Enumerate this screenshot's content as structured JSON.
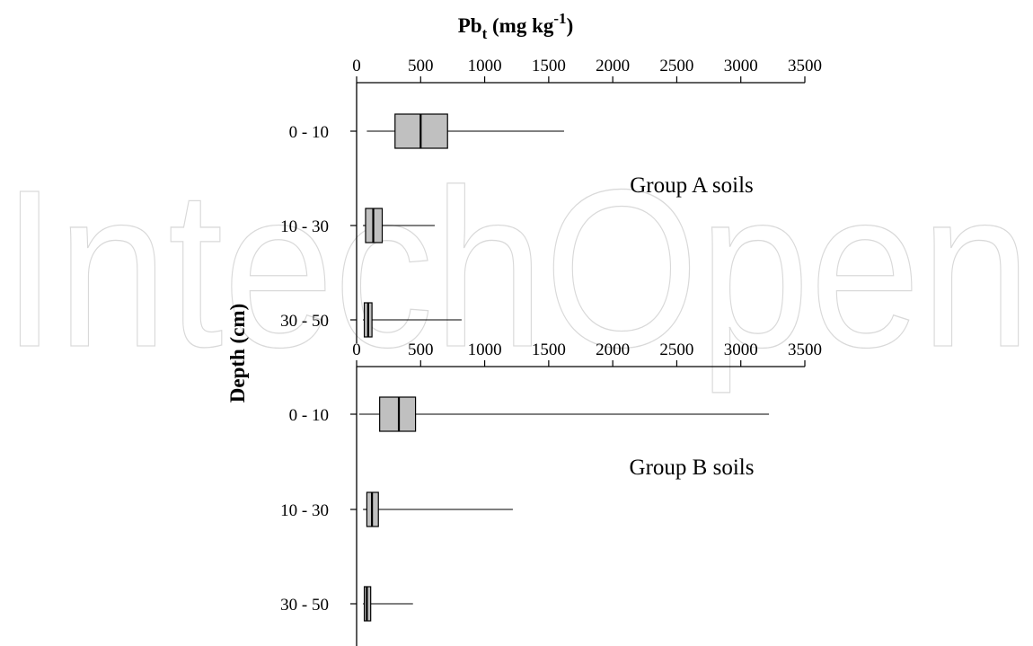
{
  "watermark": "IntechOpen",
  "chart_data": {
    "type": "box",
    "x_title": {
      "main": "Pb",
      "sub": "t",
      "mid": " (mg kg",
      "sup": "-1",
      "end": ")"
    },
    "ylabel": "Depth (cm)",
    "xlim": [
      0,
      3500
    ],
    "x_ticks": [
      0,
      500,
      1000,
      1500,
      2000,
      2500,
      3000,
      3500
    ],
    "x_tick_labels": [
      "0",
      "500",
      "1000",
      "1500",
      "2000",
      "2500",
      "3000",
      "3500"
    ],
    "categories": [
      "0 - 10",
      "10 - 30",
      "30 - 50"
    ],
    "box_fill": "#c0c0c0",
    "panels": [
      {
        "title": "Group A soils",
        "boxes": [
          {
            "depth": "0 - 10",
            "min": 80,
            "q1": 300,
            "median": 500,
            "q3": 710,
            "max": 1620
          },
          {
            "depth": "10 - 30",
            "min": 50,
            "q1": 70,
            "median": 130,
            "q3": 200,
            "max": 610
          },
          {
            "depth": "30 - 50",
            "min": 50,
            "q1": 60,
            "median": 90,
            "q3": 120,
            "max": 820
          }
        ]
      },
      {
        "title": "Group B soils",
        "boxes": [
          {
            "depth": "0 - 10",
            "min": 20,
            "q1": 180,
            "median": 330,
            "q3": 460,
            "max": 3220
          },
          {
            "depth": "10 - 30",
            "min": 50,
            "q1": 80,
            "median": 120,
            "q3": 170,
            "max": 1220
          },
          {
            "depth": "30 - 50",
            "min": 50,
            "q1": 60,
            "median": 80,
            "q3": 110,
            "max": 440
          }
        ]
      }
    ]
  }
}
